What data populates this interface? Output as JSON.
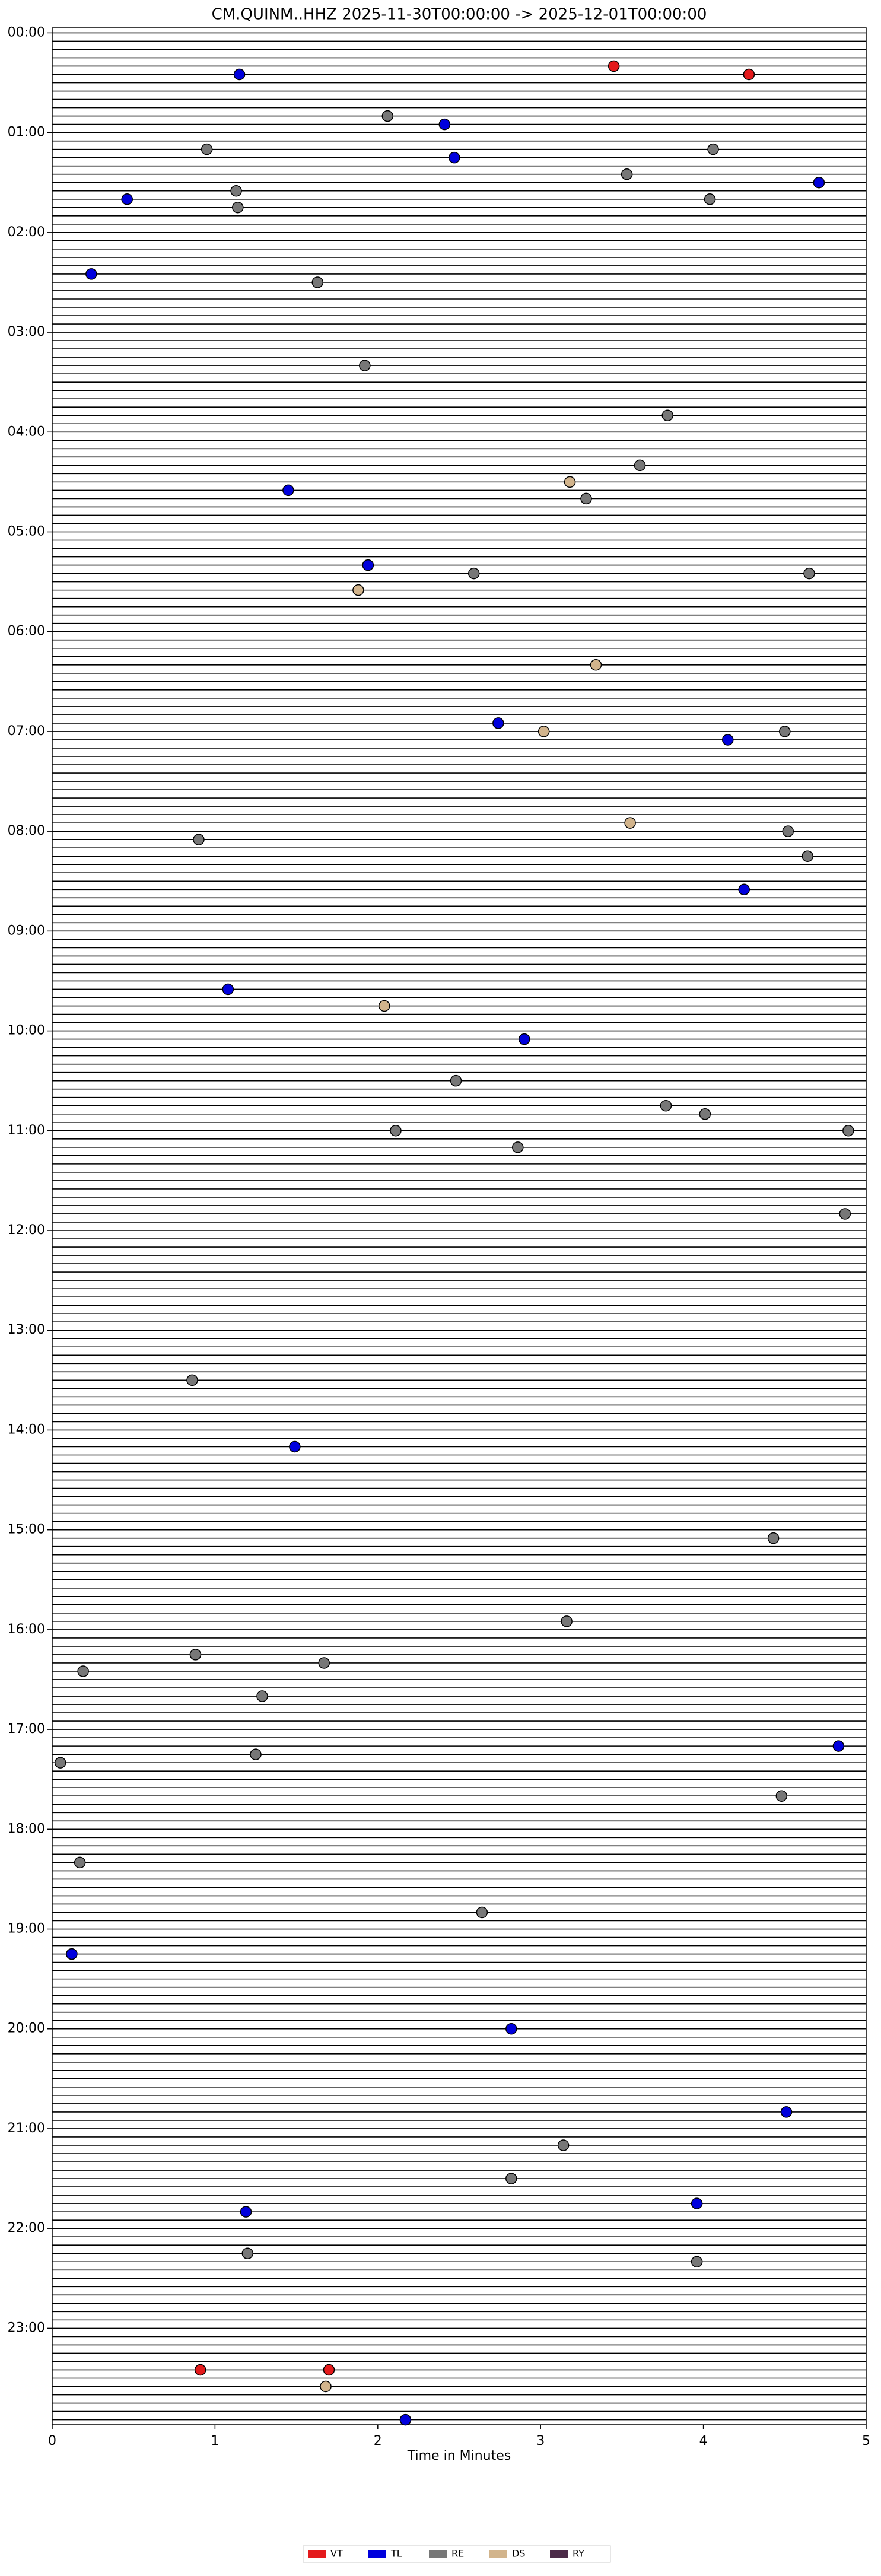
{
  "chart_data": {
    "type": "scatter",
    "title": "CM.QUINM..HHZ  2025-11-30T00:00:00 -> 2025-12-01T00:00:00",
    "x_label": "Time in Minutes",
    "xlim": [
      0,
      5
    ],
    "xticks": [
      0,
      1,
      2,
      3,
      4,
      5
    ],
    "ylim": [
      1438,
      -3
    ],
    "yticks": [
      {
        "value": 0,
        "label": "00:00"
      },
      {
        "value": 60,
        "label": "01:00"
      },
      {
        "value": 120,
        "label": "02:00"
      },
      {
        "value": 180,
        "label": "03:00"
      },
      {
        "value": 240,
        "label": "04:00"
      },
      {
        "value": 300,
        "label": "05:00"
      },
      {
        "value": 360,
        "label": "06:00"
      },
      {
        "value": 420,
        "label": "07:00"
      },
      {
        "value": 480,
        "label": "08:00"
      },
      {
        "value": 540,
        "label": "09:00"
      },
      {
        "value": 600,
        "label": "10:00"
      },
      {
        "value": 660,
        "label": "11:00"
      },
      {
        "value": 720,
        "label": "12:00"
      },
      {
        "value": 780,
        "label": "13:00"
      },
      {
        "value": 840,
        "label": "14:00"
      },
      {
        "value": 900,
        "label": "15:00"
      },
      {
        "value": 960,
        "label": "16:00"
      },
      {
        "value": 1020,
        "label": "17:00"
      },
      {
        "value": 1080,
        "label": "18:00"
      },
      {
        "value": 1140,
        "label": "19:00"
      },
      {
        "value": 1200,
        "label": "20:00"
      },
      {
        "value": 1260,
        "label": "21:00"
      },
      {
        "value": 1320,
        "label": "22:00"
      },
      {
        "value": 1380,
        "label": "23:00"
      }
    ],
    "series": [
      {
        "name": "VT",
        "color": "#e41a1c",
        "x": [
          3.45,
          4.28,
          0.91,
          1.7
        ],
        "values": [
          20,
          25,
          1405,
          1405
        ]
      },
      {
        "name": "TL",
        "color": "#0000dd",
        "x": [
          1.15,
          2.41,
          2.47,
          0.46,
          4.71,
          0.24,
          1.45,
          1.94,
          2.74,
          4.15,
          4.25,
          1.08,
          2.9,
          1.49,
          4.83,
          0.12,
          2.82,
          4.51,
          3.96,
          1.19,
          2.17
        ],
        "values": [
          25,
          55,
          75,
          100,
          90,
          145,
          275,
          320,
          415,
          425,
          515,
          575,
          605,
          850,
          1030,
          1155,
          1200,
          1250,
          1305,
          1310,
          1435
        ]
      },
      {
        "name": "RE",
        "color": "#777777",
        "x": [
          2.06,
          0.95,
          4.06,
          3.53,
          1.13,
          1.14,
          4.04,
          1.63,
          1.92,
          3.78,
          3.61,
          3.28,
          2.59,
          4.65,
          4.5,
          0.9,
          4.52,
          4.64,
          2.48,
          3.77,
          4.01,
          2.11,
          4.89,
          2.86,
          4.87,
          0.86,
          4.43,
          3.16,
          0.88,
          1.67,
          0.19,
          1.29,
          1.25,
          0.05,
          4.48,
          0.17,
          2.64,
          3.14,
          2.82,
          1.2,
          3.96
        ],
        "values": [
          50,
          70,
          70,
          85,
          95,
          105,
          100,
          150,
          200,
          230,
          260,
          280,
          325,
          325,
          420,
          485,
          480,
          495,
          630,
          645,
          650,
          660,
          660,
          670,
          710,
          810,
          905,
          955,
          975,
          980,
          985,
          1000,
          1035,
          1040,
          1060,
          1100,
          1130,
          1270,
          1290,
          1335,
          1340
        ]
      },
      {
        "name": "DS",
        "color": "#d2b48c",
        "x": [
          3.18,
          1.88,
          3.34,
          3.02,
          3.55,
          2.04,
          1.68
        ],
        "values": [
          270,
          335,
          380,
          420,
          475,
          585,
          1415
        ]
      },
      {
        "name": "RY",
        "color": "#4b2a48",
        "x": [],
        "values": []
      }
    ]
  }
}
